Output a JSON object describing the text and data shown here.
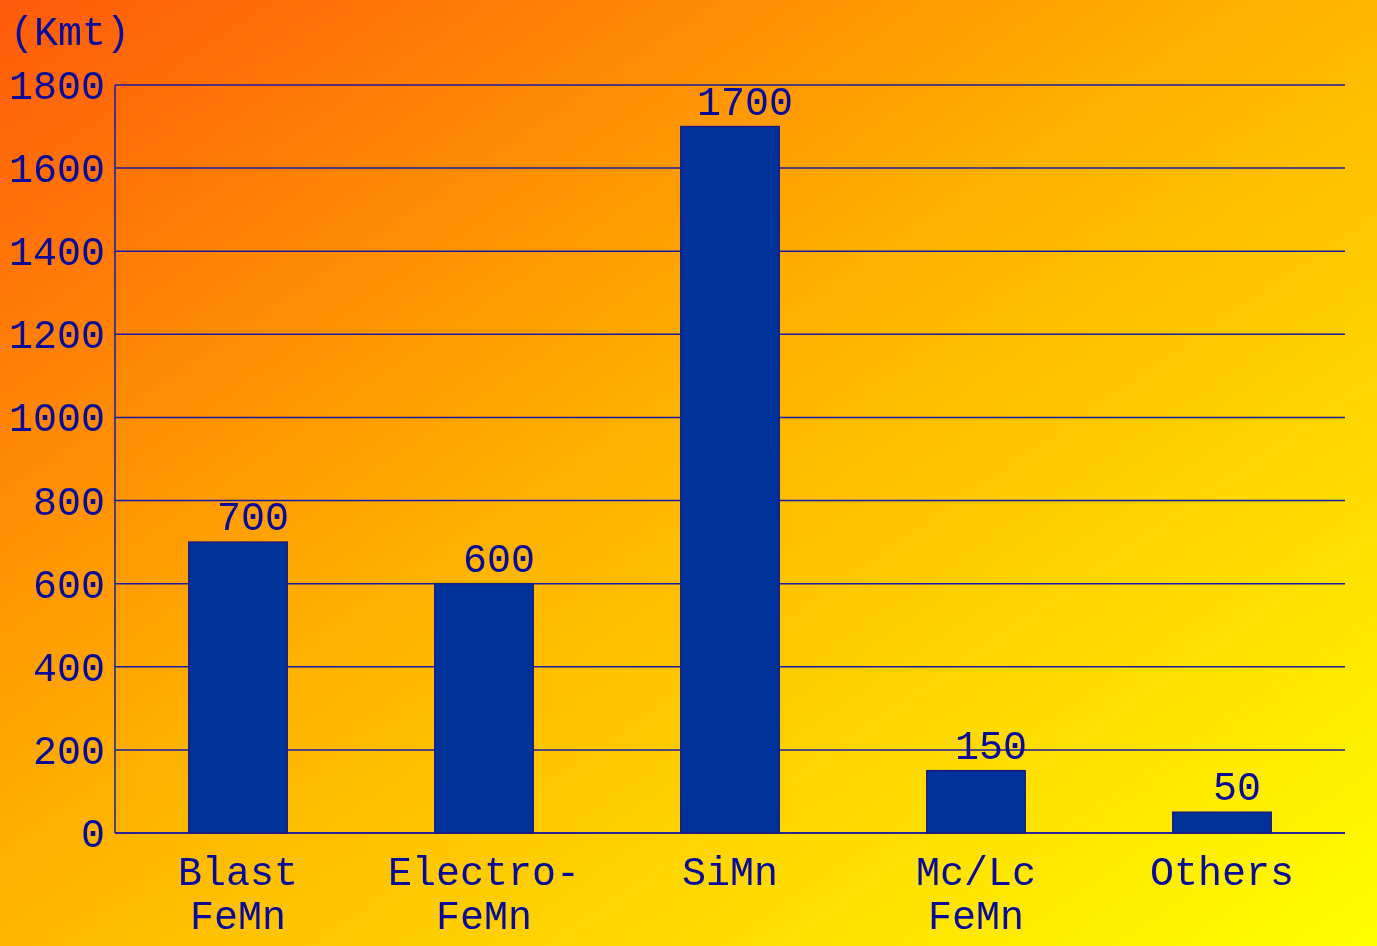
{
  "chart_data": {
    "type": "bar",
    "ylabel": "(Kmt)",
    "categories": [
      "Blast FeMn",
      "Electro-FeMn",
      "SiMn",
      "Mc/Lc FeMn",
      "Others"
    ],
    "values": [
      700,
      600,
      1700,
      150,
      50
    ],
    "color": "#003399",
    "ylim": [
      0,
      1800
    ],
    "yticks": [
      0,
      200,
      400,
      600,
      800,
      1000,
      1200,
      1400,
      1600,
      1800
    ],
    "grid": "y",
    "data_labels": true
  }
}
